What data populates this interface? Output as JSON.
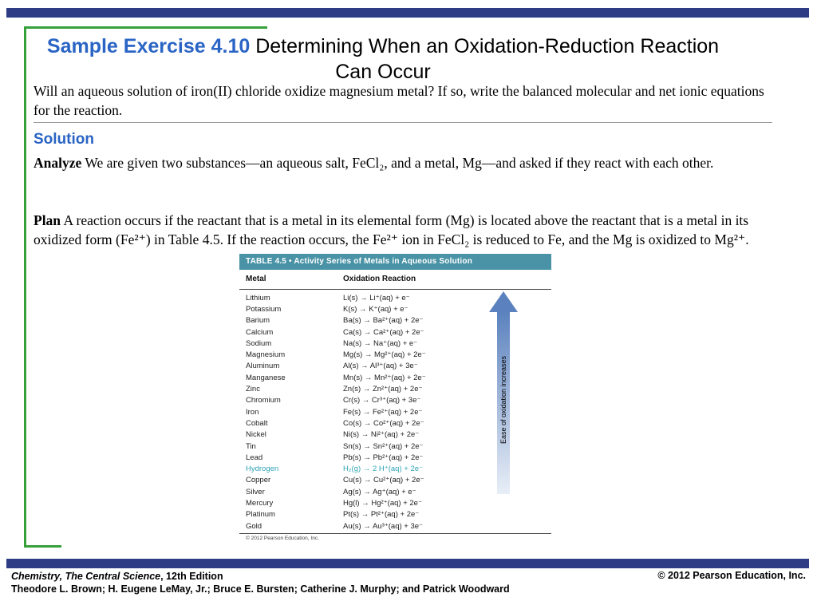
{
  "slide": {
    "title_label": "Sample Exercise 4.10",
    "title_text": " Determining When an Oxidation-Reduction Reaction Can Occur",
    "question": "Will an aqueous solution of iron(II) chloride oxidize magnesium metal? If so, write the balanced molecular and net ionic equations for the reaction.",
    "solution_heading": "Solution",
    "analyze_label": "Analyze",
    "analyze_text": " We are given two substances—an aqueous salt, FeCl₂, and a metal, Mg—and asked if they react with each other.",
    "plan_label": "Plan",
    "plan_text": " A reaction occurs if the reactant that is a metal in its elemental form (Mg) is located above the reactant that is a metal in its oxidized form (Fe²⁺) in Table 4.5. If the reaction occurs, the Fe²⁺ ion in FeCl₂ is reduced to Fe, and the Mg is oxidized to Mg²⁺."
  },
  "table": {
    "header": "TABLE 4.5 • Activity Series of Metals in Aqueous Solution",
    "col_metal": "Metal",
    "col_reaction": "Oxidation Reaction",
    "arrow_label": "Ease of oxidation increases",
    "copyright": "© 2012 Pearson Education, Inc.",
    "rows": [
      {
        "metal": "Lithium",
        "reaction": "Li(s) → Li⁺(aq) + e⁻",
        "highlight": false
      },
      {
        "metal": "Potassium",
        "reaction": "K(s) → K⁺(aq) + e⁻",
        "highlight": false
      },
      {
        "metal": "Barium",
        "reaction": "Ba(s) → Ba²⁺(aq) + 2e⁻",
        "highlight": false
      },
      {
        "metal": "Calcium",
        "reaction": "Ca(s) → Ca²⁺(aq) + 2e⁻",
        "highlight": false
      },
      {
        "metal": "Sodium",
        "reaction": "Na(s) → Na⁺(aq) + e⁻",
        "highlight": false
      },
      {
        "metal": "Magnesium",
        "reaction": "Mg(s) → Mg²⁺(aq) + 2e⁻",
        "highlight": false
      },
      {
        "metal": "Aluminum",
        "reaction": "Al(s) → Al³⁺(aq) + 3e⁻",
        "highlight": false
      },
      {
        "metal": "Manganese",
        "reaction": "Mn(s) → Mn²⁺(aq) + 2e⁻",
        "highlight": false
      },
      {
        "metal": "Zinc",
        "reaction": "Zn(s) → Zn²⁺(aq) + 2e⁻",
        "highlight": false
      },
      {
        "metal": "Chromium",
        "reaction": "Cr(s) → Cr³⁺(aq) + 3e⁻",
        "highlight": false
      },
      {
        "metal": "Iron",
        "reaction": "Fe(s) → Fe²⁺(aq) + 2e⁻",
        "highlight": false
      },
      {
        "metal": "Cobalt",
        "reaction": "Co(s) → Co²⁺(aq) + 2e⁻",
        "highlight": false
      },
      {
        "metal": "Nickel",
        "reaction": "Ni(s) → Ni²⁺(aq) + 2e⁻",
        "highlight": false
      },
      {
        "metal": "Tin",
        "reaction": "Sn(s) → Sn²⁺(aq) + 2e⁻",
        "highlight": false
      },
      {
        "metal": "Lead",
        "reaction": "Pb(s) → Pb²⁺(aq) + 2e⁻",
        "highlight": false
      },
      {
        "metal": "Hydrogen",
        "reaction": "H₂(g) → 2 H⁺(aq) + 2e⁻",
        "highlight": true
      },
      {
        "metal": "Copper",
        "reaction": "Cu(s) → Cu²⁺(aq) + 2e⁻",
        "highlight": false
      },
      {
        "metal": "Silver",
        "reaction": "Ag(s) → Ag⁺(aq) + e⁻",
        "highlight": false
      },
      {
        "metal": "Mercury",
        "reaction": "Hg(l) → Hg²⁺(aq) + 2e⁻",
        "highlight": false
      },
      {
        "metal": "Platinum",
        "reaction": "Pt(s) → Pt²⁺(aq) + 2e⁻",
        "highlight": false
      },
      {
        "metal": "Gold",
        "reaction": "Au(s) → Au³⁺(aq) + 3e⁻",
        "highlight": false
      }
    ]
  },
  "footer": {
    "book_italic": "Chemistry, The Central Science",
    "book_rest": ", 12th Edition",
    "authors": "Theodore L. Brown; H. Eugene LeMay, Jr.; Bruce E. Bursten; Catherine J. Murphy; and Patrick Woodward",
    "copyright": "© 2012 Pearson Education, Inc."
  },
  "colors": {
    "accent_navy": "#2d3c85",
    "bracket_green": "#36a13a",
    "heading_blue": "#2a64c5",
    "table_header_teal": "#4a93a6",
    "hydrogen_teal": "#2fa3b5",
    "arrow_blue": "#5b82be"
  }
}
